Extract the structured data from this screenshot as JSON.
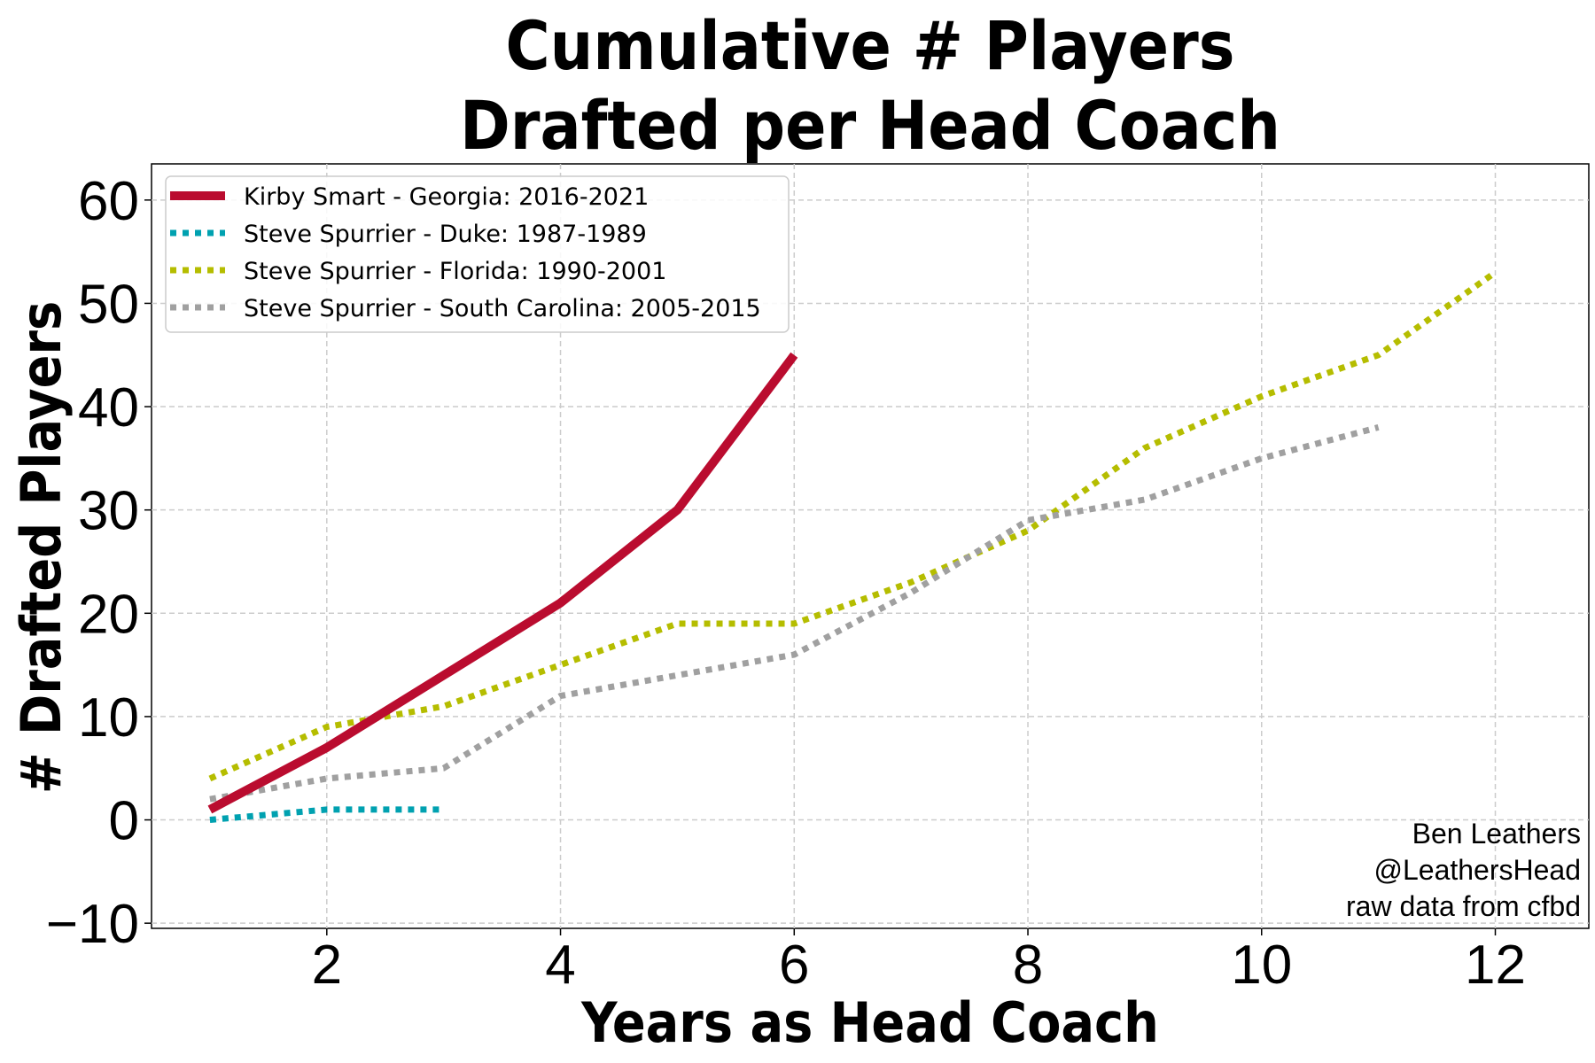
{
  "chart_data": {
    "type": "line",
    "title": [
      "Cumulative # Players",
      "Drafted per Head Coach"
    ],
    "xlabel": "Years as Head Coach",
    "ylabel": "# Drafted Players",
    "xlim": [
      0.5,
      12.8
    ],
    "ylim": [
      -10.5,
      63.5
    ],
    "xticks": [
      2,
      4,
      6,
      8,
      10,
      12
    ],
    "yticks": [
      -10,
      0,
      10,
      20,
      30,
      40,
      50,
      60
    ],
    "grid": true,
    "legend_position": "top-left",
    "series": [
      {
        "name": "Kirby Smart - Georgia: 2016-2021",
        "color": "#ba0c2f",
        "style": "solid",
        "x": [
          1,
          2,
          3,
          4,
          5,
          6
        ],
        "y": [
          1,
          7,
          14,
          21,
          30,
          45
        ]
      },
      {
        "name": "Steve Spurrier - Duke: 1987-1989",
        "color": "#00a1b0",
        "style": "dotted",
        "x": [
          1,
          2,
          3
        ],
        "y": [
          0,
          1,
          1
        ]
      },
      {
        "name": "Steve Spurrier - Florida: 1990-2001",
        "color": "#b5bd00",
        "style": "dotted",
        "x": [
          1,
          2,
          3,
          4,
          5,
          6,
          7,
          8,
          9,
          10,
          11,
          12
        ],
        "y": [
          4,
          9,
          11,
          15,
          19,
          19,
          23,
          28,
          36,
          41,
          45,
          53
        ]
      },
      {
        "name": "Steve Spurrier - South Carolina: 2005-2015",
        "color": "#a0a0a0",
        "style": "dotted",
        "x": [
          1,
          2,
          3,
          4,
          5,
          6,
          7,
          8,
          9,
          10,
          11
        ],
        "y": [
          2,
          4,
          5,
          12,
          14,
          16,
          22,
          29,
          31,
          35,
          38
        ]
      }
    ],
    "credit": [
      "Ben Leathers",
      "@LeathersHead",
      "raw data from cfbd"
    ]
  }
}
